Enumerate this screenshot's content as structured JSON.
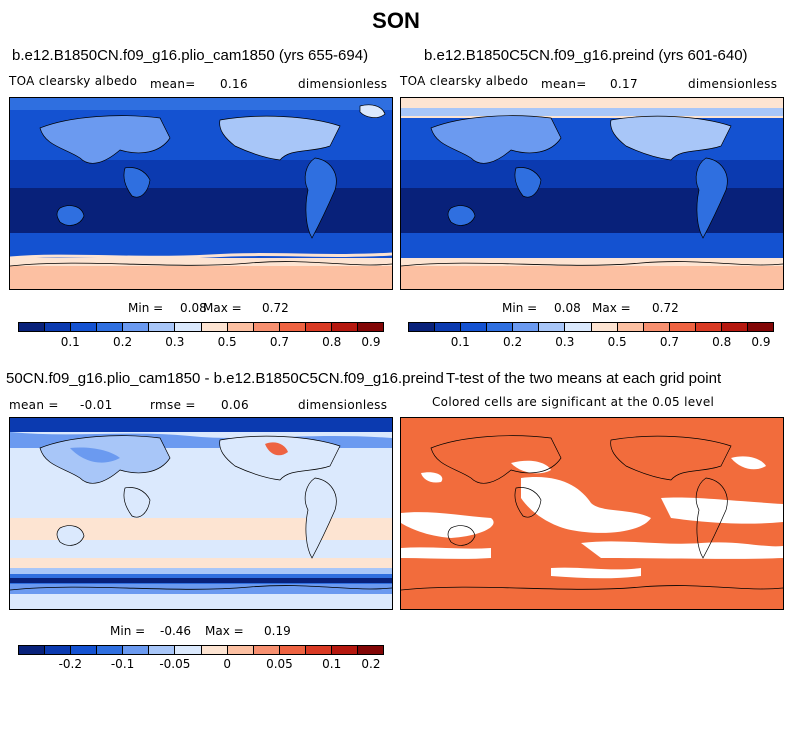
{
  "figure": {
    "title": "SON"
  },
  "panels": {
    "top_left": {
      "case": "b.e12.B1850CN.f09_g16.plio_cam1850 (yrs 655-694)",
      "variable": "TOA clearsky albedo",
      "mean_label": "mean=",
      "mean_value": "0.16",
      "units": "dimensionless",
      "min_label": "Min =",
      "min_value": "0.08",
      "max_label": "Max =",
      "max_value": "0.72"
    },
    "top_right": {
      "case": "b.e12.B1850C5CN.f09_g16.preind (yrs 601-640)",
      "variable": "TOA clearsky albedo",
      "mean_label": "mean=",
      "mean_value": "0.17",
      "units": "dimensionless",
      "min_label": "Min =",
      "min_value": "0.08",
      "max_label": "Max =",
      "max_value": "0.72"
    },
    "bottom_left": {
      "case": "50CN.f09_g16.plio_cam1850 - b.e12.B1850C5CN.f09_g16.preind",
      "mean_label": "mean =",
      "mean_value": "-0.01",
      "rmse_label": "rmse =",
      "rmse_value": "0.06",
      "units": "dimensionless",
      "min_label": "Min =",
      "min_value": "-0.46",
      "max_label": "Max =",
      "max_value": "0.19"
    },
    "bottom_right": {
      "title": "T-test of the two means at each grid point",
      "subtitle": "Colored cells are significant at the 0.05 level"
    }
  },
  "colorbars": {
    "albedo": {
      "colors": [
        "#08217a",
        "#0b3ab0",
        "#1452d1",
        "#2f6fe0",
        "#6b9af0",
        "#a8c6f8",
        "#dbe9fd",
        "#fde4d2",
        "#fcc0a2",
        "#f79070",
        "#ee6342",
        "#d93a24",
        "#b5180f",
        "#820606"
      ],
      "ticks": [
        "0.1",
        "0.2",
        "0.3",
        "0.5",
        "0.7",
        "0.8",
        "0.9"
      ]
    },
    "difference": {
      "colors": [
        "#08217a",
        "#0b3ab0",
        "#1452d1",
        "#2f6fe0",
        "#6b9af0",
        "#a8c6f8",
        "#dbe9fd",
        "#fde4d2",
        "#fcc0a2",
        "#f79070",
        "#ee6342",
        "#d93a24",
        "#b5180f",
        "#820606"
      ],
      "ticks": [
        "-0.2",
        "-0.1",
        "-0.05",
        "0",
        "0.05",
        "0.1",
        "0.2"
      ]
    }
  },
  "colors": {
    "ttest_fill": "#f26c3c",
    "ocean_mid": "#0b3ab0",
    "ocean_tropics": "#08217a",
    "ice": "#fcc0a2",
    "diff_background": "#dbe9fd"
  }
}
